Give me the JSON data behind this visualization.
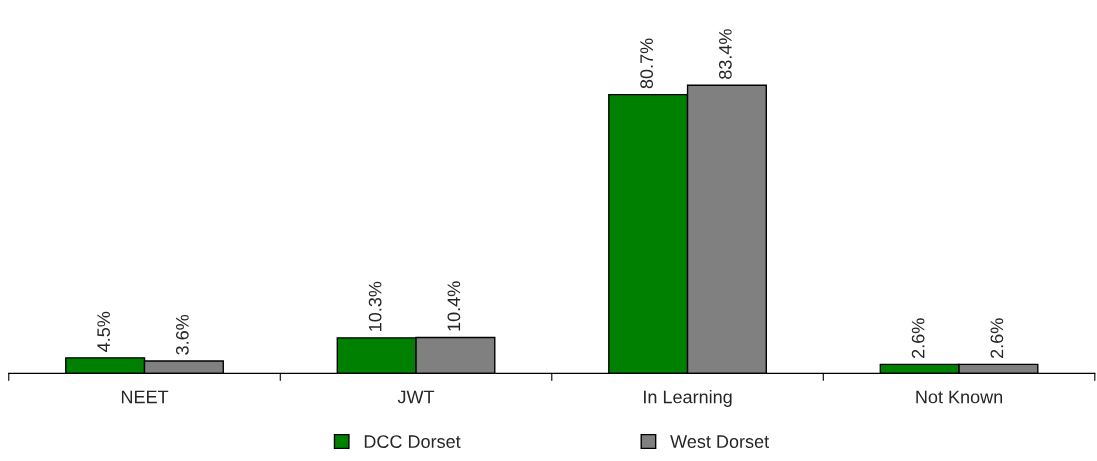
{
  "chart_data": {
    "type": "bar",
    "categories": [
      "NEET",
      "JWT",
      "In Learning",
      "Not Known"
    ],
    "series": [
      {
        "name": "DCC Dorset",
        "color": "#008000",
        "values": [
          4.5,
          10.3,
          80.7,
          2.6
        ],
        "value_labels": [
          "4.5%",
          "10.3%",
          "80.7%",
          "2.6%"
        ]
      },
      {
        "name": "West Dorset",
        "color": "#808080",
        "values": [
          3.6,
          10.4,
          83.4,
          2.6
        ],
        "value_labels": [
          "3.6%",
          "10.4%",
          "83.4%",
          "2.6%"
        ]
      }
    ],
    "legend": "bottom",
    "grid": false
  }
}
